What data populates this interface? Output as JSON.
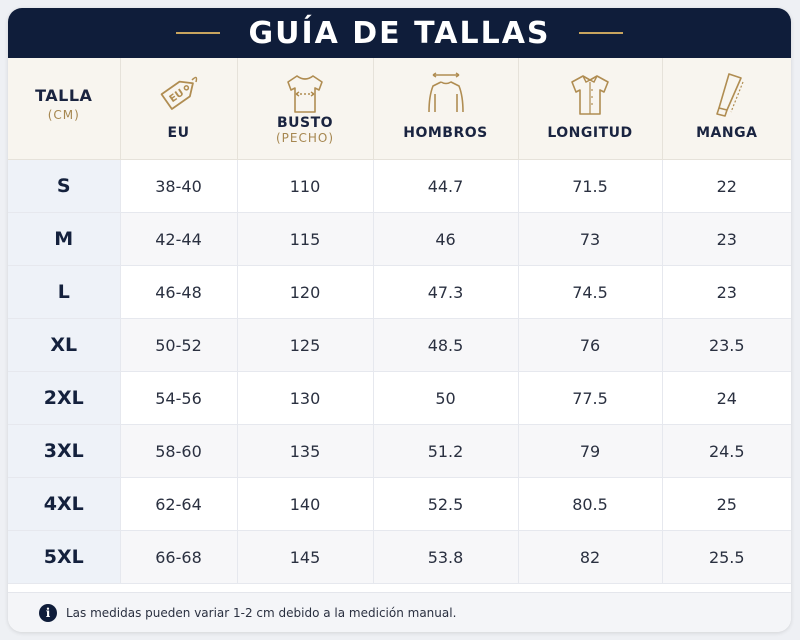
{
  "title": "GUÍA DE TALLAS",
  "colors": {
    "navy": "#0f1d3a",
    "gold": "#c8a45e",
    "header_bg": "#f8f5ef"
  },
  "headers": [
    {
      "label": "TALLA",
      "sub": "(CM)",
      "icon": ""
    },
    {
      "label": "EU",
      "sub": "",
      "icon": "price-tag-icon",
      "icon_text": "EU"
    },
    {
      "label": "BUSTO",
      "sub": "(PECHO)",
      "icon": "chest-measure-icon"
    },
    {
      "label": "HOMBROS",
      "sub": "",
      "icon": "shoulders-measure-icon"
    },
    {
      "label": "LONGITUD",
      "sub": "",
      "icon": "shirt-length-icon"
    },
    {
      "label": "MANGA",
      "sub": "",
      "icon": "sleeve-measure-icon"
    }
  ],
  "rows": [
    [
      "S",
      "38-40",
      "110",
      "44.7",
      "71.5",
      "22"
    ],
    [
      "M",
      "42-44",
      "115",
      "46",
      "73",
      "23"
    ],
    [
      "L",
      "46-48",
      "120",
      "47.3",
      "74.5",
      "23"
    ],
    [
      "XL",
      "50-52",
      "125",
      "48.5",
      "76",
      "23.5"
    ],
    [
      "2XL",
      "54-56",
      "130",
      "50",
      "77.5",
      "24"
    ],
    [
      "3XL",
      "58-60",
      "135",
      "51.2",
      "79",
      "24.5"
    ],
    [
      "4XL",
      "62-64",
      "140",
      "52.5",
      "80.5",
      "25"
    ],
    [
      "5XL",
      "66-68",
      "145",
      "53.8",
      "82",
      "25.5"
    ]
  ],
  "footer": {
    "icon": "info-icon",
    "icon_glyph": "i",
    "text": "Las medidas pueden variar 1-2 cm debido a la medición manual."
  }
}
